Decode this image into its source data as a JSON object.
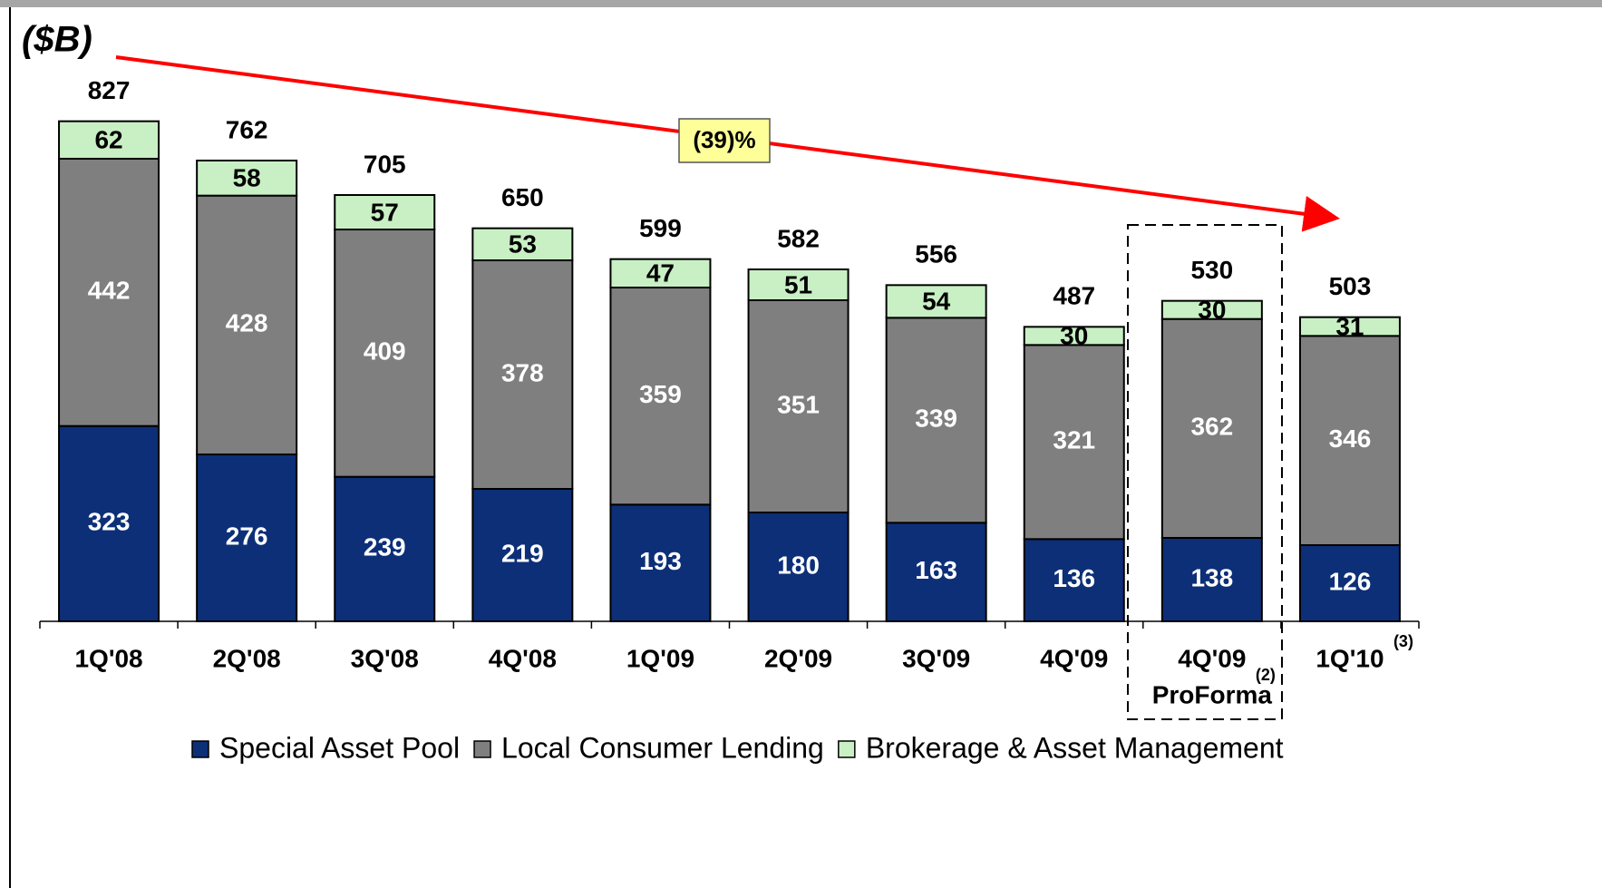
{
  "chart_data": {
    "type": "stacked_bar",
    "unit_label": "($B)",
    "annotation": "(39)%",
    "categories": [
      "1Q'08",
      "2Q'08",
      "3Q'08",
      "4Q'08",
      "1Q'09",
      "2Q'09",
      "3Q'09",
      "4Q'09",
      "4Q'09",
      "1Q'10"
    ],
    "category_second_lines": [
      null,
      null,
      null,
      null,
      null,
      null,
      null,
      null,
      "ProForma",
      null
    ],
    "category_notes": [
      null,
      null,
      null,
      null,
      null,
      null,
      null,
      null,
      "(2)",
      "(3)"
    ],
    "totals": [
      827,
      762,
      705,
      650,
      599,
      582,
      556,
      487,
      530,
      503
    ],
    "series": [
      {
        "name": "Special Asset Pool",
        "color": "#0d2f78",
        "values": [
          323,
          276,
          239,
          219,
          193,
          180,
          163,
          136,
          138,
          126
        ]
      },
      {
        "name": "Local Consumer Lending",
        "color": "#7f7f7f",
        "values": [
          442,
          428,
          409,
          378,
          359,
          351,
          339,
          321,
          362,
          346
        ]
      },
      {
        "name": "Brokerage & Asset Management",
        "color": "#c8f0c4",
        "values": [
          62,
          58,
          57,
          53,
          47,
          51,
          54,
          30,
          30,
          31
        ]
      }
    ],
    "ylim": [
      0,
      900
    ]
  }
}
